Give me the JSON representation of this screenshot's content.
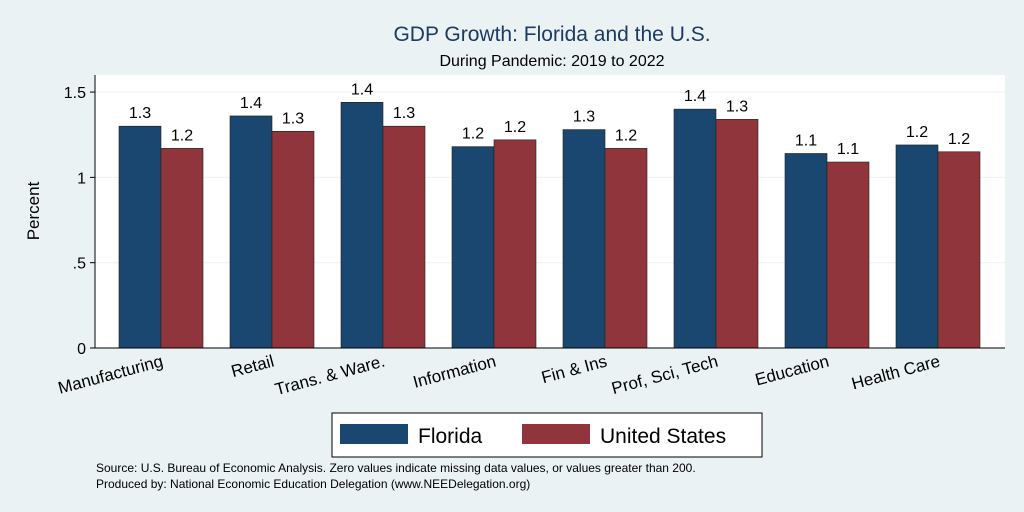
{
  "chart_data": {
    "type": "bar",
    "title": "GDP Growth: Florida and the U.S.",
    "subtitle": "During Pandemic: 2019 to 2022",
    "ylabel": "Percent",
    "xlabel": "",
    "ylim": [
      0,
      1.6
    ],
    "yticks": [
      {
        "value": 0,
        "label": "0"
      },
      {
        "value": 0.5,
        "label": ".5"
      },
      {
        "value": 1,
        "label": "1"
      },
      {
        "value": 1.5,
        "label": "1.5"
      }
    ],
    "grid": true,
    "categories": [
      "Manufacturing",
      "Retail",
      "Trans. & Ware.",
      "Information",
      "Fin & Ins",
      "Prof, Sci, Tech",
      "Education",
      "Health Care"
    ],
    "series": [
      {
        "name": "Florida",
        "color": "#1a476f",
        "values": [
          1.3,
          1.36,
          1.44,
          1.18,
          1.28,
          1.4,
          1.14,
          1.19
        ],
        "labels": [
          "1.3",
          "1.4",
          "1.4",
          "1.2",
          "1.3",
          "1.4",
          "1.1",
          "1.2"
        ]
      },
      {
        "name": "United States",
        "color": "#90353b",
        "values": [
          1.17,
          1.27,
          1.3,
          1.22,
          1.17,
          1.34,
          1.09,
          1.15
        ],
        "labels": [
          "1.2",
          "1.3",
          "1.3",
          "1.2",
          "1.2",
          "1.3",
          "1.1",
          "1.2"
        ]
      }
    ],
    "legend": "bottom",
    "notes": [
      "Source: U.S. Bureau of Economic Analysis. Zero values indicate missing data values, or values greater than 200.",
      "Produced by: National Economic Education Delegation (www.NEEDelegation.org)"
    ]
  }
}
